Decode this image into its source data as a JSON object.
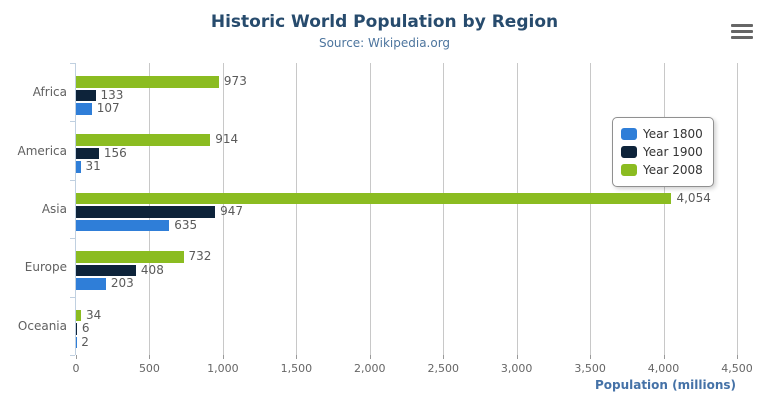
{
  "header": {
    "title": "Historic World Population by Region",
    "subtitle": "Source: Wikipedia.org"
  },
  "toolbar": {
    "menu_icon": "hamburger-menu-icon"
  },
  "chart_data": {
    "type": "bar",
    "orientation": "horizontal",
    "title": "Historic World Population by Region",
    "subtitle": "Source: Wikipedia.org",
    "categories": [
      "Africa",
      "America",
      "Asia",
      "Europe",
      "Oceania"
    ],
    "series": [
      {
        "name": "Year 1800",
        "color": "#2f7ed8",
        "values": [
          107,
          31,
          635,
          203,
          2
        ]
      },
      {
        "name": "Year 1900",
        "color": "#0d233a",
        "values": [
          133,
          156,
          947,
          408,
          6
        ]
      },
      {
        "name": "Year 2008",
        "color": "#8bbc21",
        "values": [
          973,
          914,
          4054,
          732,
          34
        ]
      }
    ],
    "bar_render_order_top_to_bottom": [
      "Year 2008",
      "Year 1900",
      "Year 1800"
    ],
    "data_labels": true,
    "xlabel": "Population (millions)",
    "xlim": [
      0,
      4500
    ],
    "x_ticks": [
      0,
      500,
      1000,
      1500,
      2000,
      2500,
      3000,
      3500,
      4000,
      4500
    ],
    "x_tick_labels": [
      "0",
      "500",
      "1,000",
      "1,500",
      "2,000",
      "2,500",
      "3,000",
      "3,500",
      "4,000",
      "4,500"
    ],
    "grid": true,
    "legend": {
      "position": "right",
      "items": [
        {
          "label": "Year 1800",
          "color": "#2f7ed8"
        },
        {
          "label": "Year 1900",
          "color": "#0d233a"
        },
        {
          "label": "Year 2008",
          "color": "#8bbc21"
        }
      ]
    }
  }
}
